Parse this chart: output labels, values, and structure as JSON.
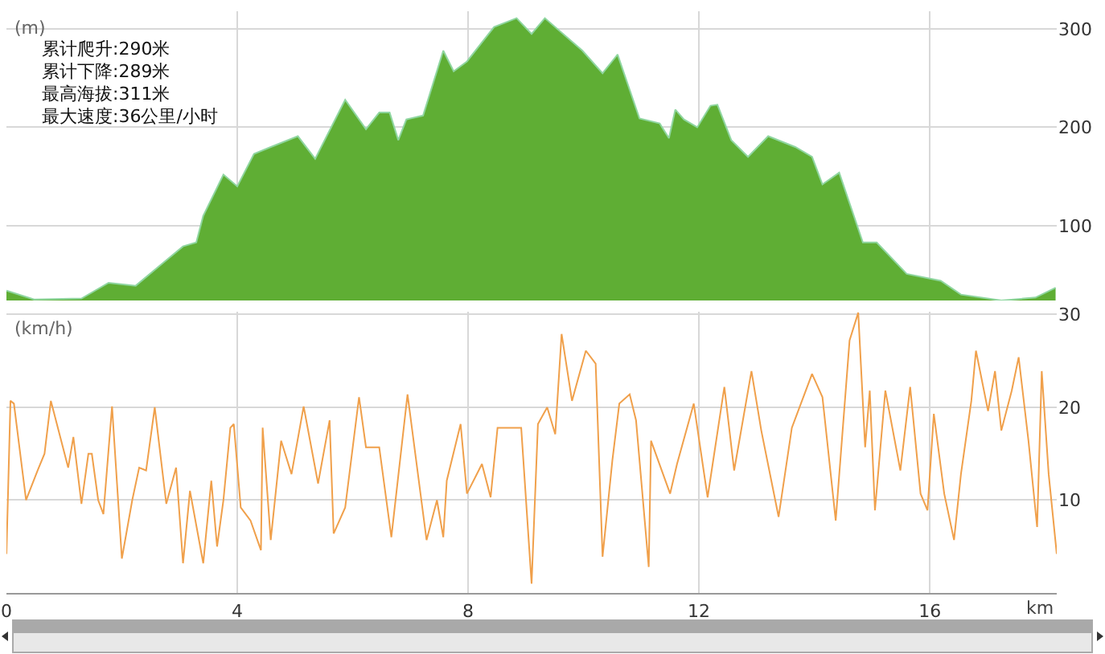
{
  "chart_data": [
    {
      "type": "area",
      "ylabel": "(m)",
      "annotations": [
        "累计爬升:290米",
        "累计下降:289米",
        "最高海拔:311米",
        "最大速度:36公里/小时"
      ],
      "x": [
        0,
        0.48,
        1.3,
        1.77,
        2.24,
        2.71,
        3.06,
        3.29,
        3.41,
        3.76,
        4.0,
        4.29,
        4.58,
        5.05,
        5.35,
        5.87,
        6.23,
        6.46,
        6.64,
        6.79,
        6.93,
        7.22,
        7.57,
        7.75,
        7.98,
        8.45,
        8.84,
        9.1,
        9.33,
        9.98,
        10.33,
        10.59,
        10.97,
        11.32,
        11.48,
        11.59,
        11.74,
        11.97,
        12.2,
        12.32,
        12.56,
        12.85,
        13.2,
        13.67,
        13.96,
        14.14,
        14.43,
        14.84,
        15.08,
        15.6,
        16.19,
        16.54,
        17.24,
        17.83,
        18.18
      ],
      "series": [
        {
          "color": "#5fae34",
          "values": [
            34,
            25,
            26,
            42,
            39,
            62,
            79,
            83,
            110,
            152,
            140,
            173,
            180,
            191,
            168,
            228,
            198,
            215,
            215,
            187,
            208,
            212,
            278,
            257,
            267,
            302,
            311,
            295,
            311,
            278,
            255,
            274,
            209,
            204,
            189,
            218,
            208,
            200,
            222,
            223,
            187,
            170,
            191,
            180,
            170,
            142,
            154,
            83,
            83,
            51,
            44,
            30,
            24,
            27,
            37
          ]
        }
      ],
      "xlim": [
        0,
        18.2
      ],
      "ylim": [
        24,
        318
      ],
      "xticks": [
        0,
        4,
        8,
        12,
        16
      ],
      "yticks": [
        100,
        200,
        300
      ],
      "grid": true,
      "tick_labels": "y"
    },
    {
      "type": "line",
      "ylabel": "(km/h)",
      "xlabel": "km",
      "x": [
        0,
        0.07,
        0.13,
        0.34,
        0.54,
        0.66,
        0.77,
        1.07,
        1.16,
        1.3,
        1.42,
        1.48,
        1.59,
        1.68,
        1.83,
        2.0,
        2.18,
        2.3,
        2.42,
        2.57,
        2.77,
        2.94,
        3.06,
        3.18,
        3.41,
        3.55,
        3.65,
        3.76,
        3.88,
        3.94,
        4.06,
        4.23,
        4.41,
        4.44,
        4.58,
        4.76,
        4.94,
        5.15,
        5.4,
        5.6,
        5.67,
        5.87,
        6.11,
        6.23,
        6.46,
        6.67,
        6.95,
        7.28,
        7.46,
        7.57,
        7.63,
        7.87,
        7.98,
        8.24,
        8.39,
        8.51,
        8.92,
        9.1,
        9.21,
        9.37,
        9.51,
        9.62,
        9.8,
        10.04,
        10.21,
        10.33,
        10.5,
        10.62,
        10.8,
        10.91,
        11.13,
        11.17,
        11.5,
        11.62,
        11.91,
        12.15,
        12.44,
        12.61,
        12.91,
        13.08,
        13.38,
        13.61,
        13.96,
        14.14,
        14.37,
        14.61,
        14.76,
        14.88,
        14.96,
        15.05,
        15.23,
        15.49,
        15.66,
        15.84,
        15.96,
        16.07,
        16.25,
        16.42,
        16.54,
        16.72,
        16.8,
        17.01,
        17.13,
        17.24,
        17.42,
        17.54,
        17.71,
        17.86,
        17.94,
        18.06,
        18.2
      ],
      "series": [
        {
          "color": "#f0a04b",
          "values": [
            4.2,
            20.7,
            20.4,
            10,
            13.2,
            15,
            20.7,
            13.5,
            16.8,
            9.6,
            15,
            15,
            10,
            8.5,
            20.1,
            3.7,
            10,
            13.5,
            13.2,
            20,
            9.6,
            13.5,
            3.2,
            11,
            3.2,
            12.1,
            5,
            10,
            17.8,
            18.2,
            9.2,
            7.8,
            4.6,
            17.8,
            5.7,
            16.4,
            12.8,
            20.1,
            11.8,
            18.6,
            6.4,
            9.2,
            21.1,
            15.7,
            15.7,
            6,
            21.4,
            5.7,
            10,
            6,
            12.1,
            18.2,
            10.7,
            13.9,
            10.3,
            17.8,
            17.8,
            1,
            18.2,
            20,
            17.1,
            27.9,
            20.7,
            26.1,
            24.7,
            3.9,
            14.3,
            20.4,
            21.4,
            18.6,
            2.8,
            16.4,
            10.7,
            13.9,
            20.4,
            10.3,
            22.2,
            13.2,
            23.9,
            17.5,
            8.2,
            17.8,
            23.6,
            21.1,
            7.8,
            27.2,
            30.2,
            15.7,
            21.8,
            8.9,
            21.8,
            13.2,
            22.2,
            10.7,
            8.9,
            19.3,
            10.7,
            5.7,
            12.8,
            20.7,
            26.1,
            19.6,
            23.9,
            17.5,
            21.8,
            25.4,
            16.4,
            7.1,
            23.9,
            12.8,
            4.2
          ]
        }
      ],
      "xlim": [
        0,
        18.2
      ],
      "ylim": [
        0,
        30.3
      ],
      "xticks": [
        0,
        4,
        8,
        12,
        16
      ],
      "yticks": [
        10,
        20,
        30
      ],
      "grid": true
    }
  ]
}
